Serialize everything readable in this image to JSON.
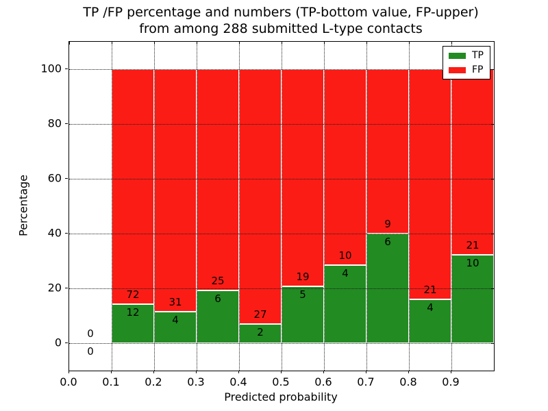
{
  "chart_data": {
    "type": "bar",
    "stacked": true,
    "title_lines": [
      "TP /FP percentage and numbers (TP-bottom value, FP-upper)",
      "from among 288 submitted L-type contacts"
    ],
    "total_contacts": 288,
    "xlabel": "Predicted probability",
    "ylabel": "Percentage",
    "xlim": [
      0.0,
      1.0
    ],
    "ylim": [
      -10,
      110
    ],
    "xtick_values": [
      0.0,
      0.1,
      0.2,
      0.3,
      0.4,
      0.5,
      0.6,
      0.7,
      0.8,
      0.9
    ],
    "xticks": [
      "0.0",
      "0.1",
      "0.2",
      "0.3",
      "0.4",
      "0.5",
      "0.6",
      "0.7",
      "0.8",
      "0.9"
    ],
    "ytick_values": [
      0,
      20,
      40,
      60,
      80,
      100
    ],
    "yticks": [
      "0",
      "20",
      "40",
      "60",
      "80",
      "100"
    ],
    "grid": true,
    "grid_style": "dotted",
    "legend": {
      "position": "upper-right",
      "entries": [
        {
          "label": "TP",
          "color": "#228b22"
        },
        {
          "label": "FP",
          "color": "#fb1c16"
        }
      ]
    },
    "colors": {
      "tp": "#228b22",
      "fp": "#fb1c16",
      "bar_edge": "#ffffff",
      "axis": "#000000",
      "text": "#000000",
      "background": "#ffffff"
    },
    "bins": [
      {
        "range_start": 0.0,
        "range_end": 0.1,
        "tp_count": 0,
        "fp_count": 0,
        "tp_pct": 0.0,
        "has_bar": false
      },
      {
        "range_start": 0.1,
        "range_end": 0.2,
        "tp_count": 12,
        "fp_count": 72,
        "tp_pct": 14.29,
        "has_bar": true
      },
      {
        "range_start": 0.2,
        "range_end": 0.3,
        "tp_count": 4,
        "fp_count": 31,
        "tp_pct": 11.43,
        "has_bar": true
      },
      {
        "range_start": 0.3,
        "range_end": 0.4,
        "tp_count": 6,
        "fp_count": 25,
        "tp_pct": 19.35,
        "has_bar": true
      },
      {
        "range_start": 0.4,
        "range_end": 0.5,
        "tp_count": 2,
        "fp_count": 27,
        "tp_pct": 6.9,
        "has_bar": true
      },
      {
        "range_start": 0.5,
        "range_end": 0.6,
        "tp_count": 5,
        "fp_count": 19,
        "tp_pct": 20.83,
        "has_bar": true
      },
      {
        "range_start": 0.6,
        "range_end": 0.7,
        "tp_count": 4,
        "fp_count": 10,
        "tp_pct": 28.57,
        "has_bar": true
      },
      {
        "range_start": 0.7,
        "range_end": 0.8,
        "tp_count": 6,
        "fp_count": 9,
        "tp_pct": 40.0,
        "has_bar": true
      },
      {
        "range_start": 0.8,
        "range_end": 0.9,
        "tp_count": 4,
        "fp_count": 21,
        "tp_pct": 16.0,
        "has_bar": true
      },
      {
        "range_start": 0.9,
        "range_end": 1.0,
        "tp_count": 10,
        "fp_count": 21,
        "tp_pct": 32.26,
        "has_bar": true
      }
    ]
  }
}
